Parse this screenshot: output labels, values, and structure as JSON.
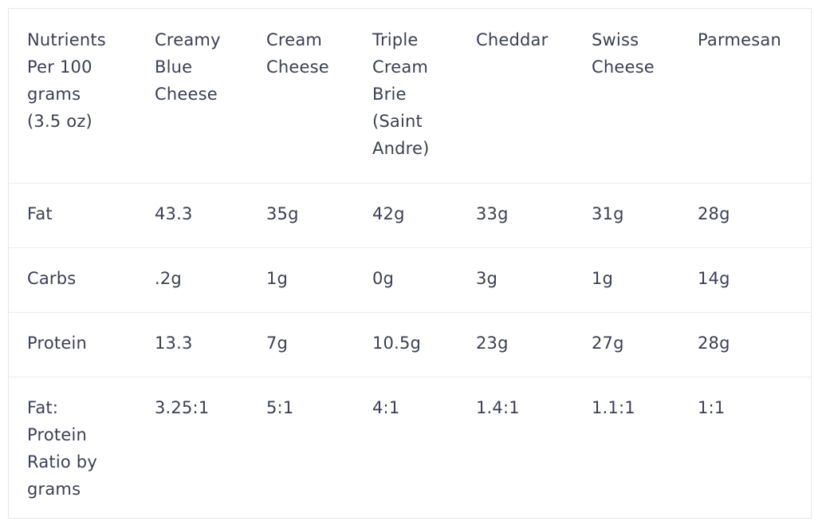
{
  "table": {
    "headers": [
      "Nutrients Per 100 grams (3.5 oz)",
      "Creamy Blue Cheese",
      "Cream Cheese",
      "Triple Cream Brie (Saint Andre)",
      "Cheddar",
      "Swiss Cheese",
      "Parmesan"
    ],
    "rows": [
      {
        "label": "Fat",
        "values": [
          "43.3",
          "35g",
          "42g",
          "33g",
          "31g",
          "28g"
        ]
      },
      {
        "label": "Carbs",
        "values": [
          ".2g",
          "1g",
          "0g",
          "3g",
          "1g",
          "14g"
        ]
      },
      {
        "label": "Protein",
        "values": [
          "13.3",
          "7g",
          "10.5g",
          "23g",
          "27g",
          "28g"
        ]
      },
      {
        "label": "Fat: Protein Ratio by grams",
        "values": [
          "3.25:1",
          "5:1",
          "4:1",
          "1.4:1",
          "1.1:1",
          "1:1"
        ]
      }
    ]
  },
  "colors": {
    "text": "#3b3f51",
    "border": "#e6e6ea",
    "row_divider": "#ececef"
  }
}
